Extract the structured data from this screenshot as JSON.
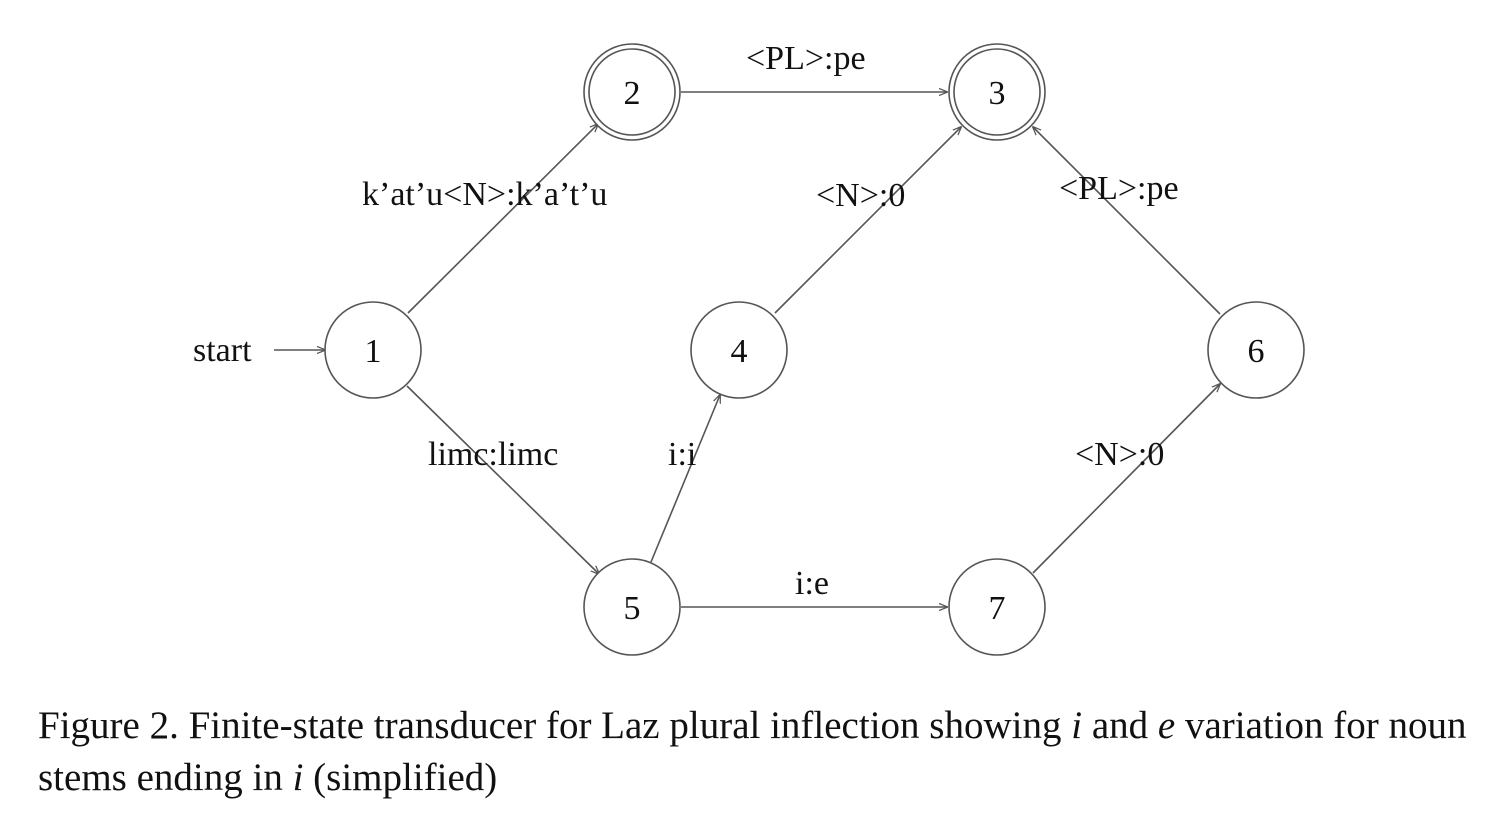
{
  "diagram": {
    "start_label": "start",
    "states": [
      {
        "id": "1",
        "label": "1",
        "accepting": false
      },
      {
        "id": "2",
        "label": "2",
        "accepting": true
      },
      {
        "id": "3",
        "label": "3",
        "accepting": true
      },
      {
        "id": "4",
        "label": "4",
        "accepting": false
      },
      {
        "id": "5",
        "label": "5",
        "accepting": false
      },
      {
        "id": "6",
        "label": "6",
        "accepting": false
      },
      {
        "id": "7",
        "label": "7",
        "accepting": false
      }
    ],
    "transitions": [
      {
        "from": "1",
        "to": "2",
        "label": "k’at’u<N>:k’a’t’u"
      },
      {
        "from": "2",
        "to": "3",
        "label": "<PL>:pe"
      },
      {
        "from": "4",
        "to": "3",
        "label": "<N>:0"
      },
      {
        "from": "6",
        "to": "3",
        "label": "<PL>:pe"
      },
      {
        "from": "1",
        "to": "5",
        "label": "limc:limc"
      },
      {
        "from": "5",
        "to": "4",
        "label": "i:i"
      },
      {
        "from": "5",
        "to": "7",
        "label": "i:e"
      },
      {
        "from": "7",
        "to": "6",
        "label": "<N>:0"
      }
    ],
    "colors": {
      "stroke": "#555555",
      "text": "#111111"
    }
  },
  "caption": {
    "prefix": "Figure 2.  Finite-state transducer for Laz plural inflection showing ",
    "var1": "i",
    "mid": " and ",
    "var2": "e",
    "suffix": " variation for noun stems ending in ",
    "var3": "i",
    "end": " (simplified)"
  }
}
